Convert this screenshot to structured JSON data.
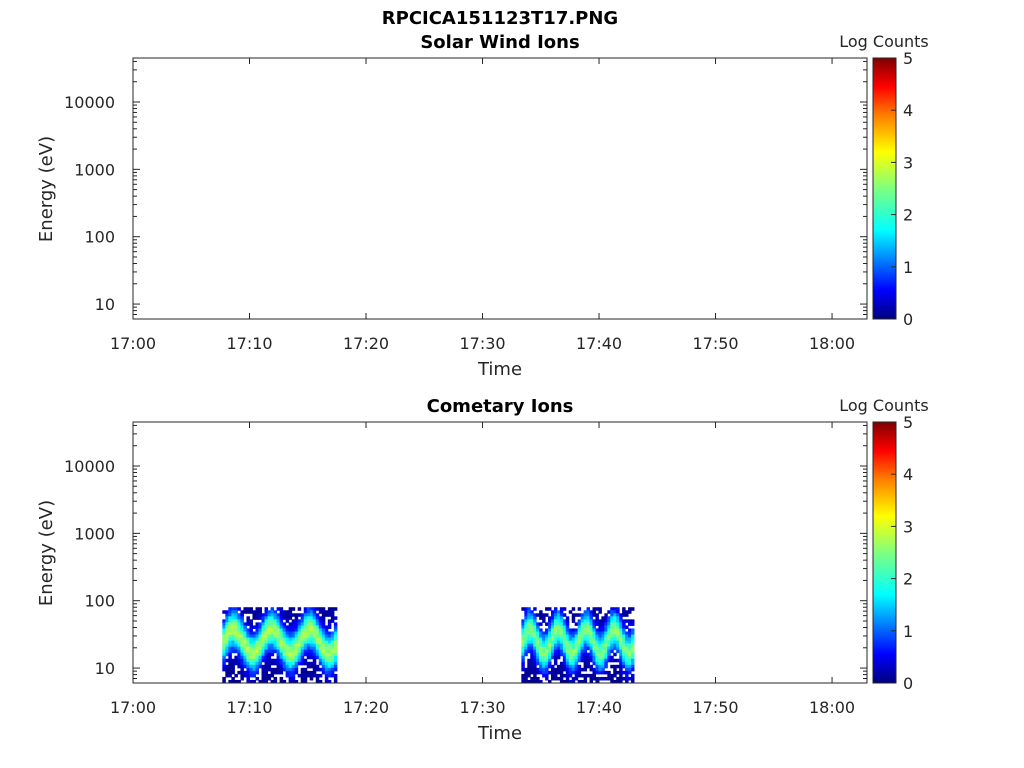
{
  "figure": {
    "title": "RPCICA151123T17.PNG"
  },
  "colormap": {
    "name": "jet",
    "stops": [
      "#00007f",
      "#0000ff",
      "#007fff",
      "#00ffff",
      "#7fff7f",
      "#ffff00",
      "#ff7f00",
      "#ff0000",
      "#7f0000"
    ]
  },
  "chart_data": [
    {
      "type": "heatmap",
      "title": "Solar Wind Ions",
      "xlabel": "Time",
      "ylabel": "Energy (eV)",
      "x_ticks": [
        "17:00",
        "17:10",
        "17:20",
        "17:30",
        "17:40",
        "17:50",
        "18:00"
      ],
      "xlim": [
        "17:00",
        "18:03"
      ],
      "y_scale": "log",
      "y_ticks": [
        "10",
        "100",
        "1000",
        "10000"
      ],
      "ylim": [
        6,
        45000
      ],
      "colorbar": {
        "label": "Log Counts",
        "ticks": [
          "0",
          "1",
          "2",
          "3",
          "4",
          "5"
        ],
        "range": [
          0,
          5
        ]
      },
      "data_blocks": []
    },
    {
      "type": "heatmap",
      "title": "Cometary Ions",
      "xlabel": "Time",
      "ylabel": "Energy (eV)",
      "x_ticks": [
        "17:00",
        "17:10",
        "17:20",
        "17:30",
        "17:40",
        "17:50",
        "18:00"
      ],
      "xlim": [
        "17:00",
        "18:03"
      ],
      "y_scale": "log",
      "y_ticks": [
        "10",
        "100",
        "1000",
        "10000"
      ],
      "ylim": [
        6,
        45000
      ],
      "colorbar": {
        "label": "Log Counts",
        "ticks": [
          "0",
          "1",
          "2",
          "3",
          "4",
          "5"
        ],
        "range": [
          0,
          5
        ]
      },
      "data_blocks": [
        {
          "t_start": "17:07:40",
          "t_end": "17:17:30",
          "e_min": 6,
          "e_max": 80,
          "peak_log_counts": 2.7,
          "peak_energy_ev": 25,
          "oscillation_cycles": 3
        },
        {
          "t_start": "17:33:20",
          "t_end": "17:43:00",
          "e_min": 6,
          "e_max": 80,
          "peak_log_counts": 2.5,
          "peak_energy_ev": 25,
          "oscillation_cycles": 4
        }
      ]
    }
  ]
}
